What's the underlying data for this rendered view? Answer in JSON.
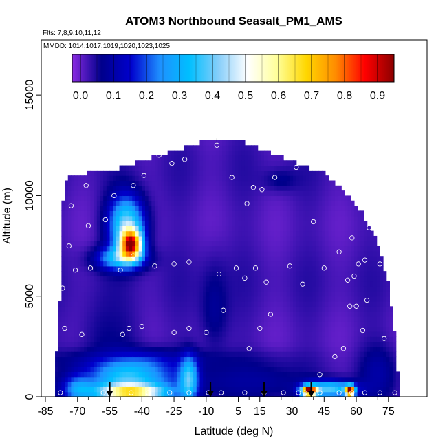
{
  "chart_data": {
    "type": "heatmap",
    "title": "ATOM3 Northbound Seasalt_PM1_AMS",
    "subtitle_flights": "Flts: 7,8,9,10,11,12",
    "subtitle_dates": "MMDD: 1014,1017,1019,1020,1023,1025",
    "xlabel": "Latitude (deg N)",
    "ylabel": "Altitude (m)",
    "xlim": [
      -85,
      85
    ],
    "ylim": [
      0,
      17500
    ],
    "x_ticks": [
      -85,
      -70,
      -55,
      -40,
      -25,
      -10,
      5,
      15,
      30,
      45,
      60,
      75
    ],
    "x_tick_labels": [
      "-85",
      "-70",
      "-55",
      "-40",
      "-25",
      "-10",
      "5",
      "15",
      "30",
      "45",
      "60",
      "75"
    ],
    "y_ticks": [
      0,
      5000,
      10000,
      15000
    ],
    "y_tick_labels": [
      "0",
      "5000",
      "10000",
      "15000"
    ],
    "colorbar": {
      "range": [
        -0.025,
        0.95
      ],
      "ticks": [
        0.0,
        0.1,
        0.2,
        0.3,
        0.4,
        0.5,
        0.6,
        0.7,
        0.8,
        0.9
      ],
      "tick_labels": [
        "0.0",
        "0.1",
        "0.2",
        "0.3",
        "0.4",
        "0.5",
        "0.6",
        "0.7",
        "0.8",
        "0.9"
      ],
      "colors": [
        "#8a2be2",
        "#00008b",
        "#0000cd",
        "#1e90ff",
        "#00bfff",
        "#87cefa",
        "#ffffff",
        "#ffff99",
        "#ffd700",
        "#ff8c00",
        "#ff0000",
        "#8b0000"
      ],
      "placement": "top inside plot"
    },
    "background_value": 0.02,
    "blobs": [
      {
        "lat": -45,
        "alt": 7600,
        "amp": 0.72,
        "sx": 3.5,
        "sy": 500
      },
      {
        "lat": -47,
        "alt": 8600,
        "amp": 0.38,
        "sx": 6,
        "sy": 1000
      },
      {
        "lat": -50,
        "alt": 6900,
        "amp": 0.28,
        "sx": 8,
        "sy": 400
      },
      {
        "lat": -45,
        "alt": 200,
        "amp": 0.5,
        "sx": 12,
        "sy": 300
      },
      {
        "lat": -45,
        "alt": 1000,
        "amp": 0.32,
        "sx": 14,
        "sy": 700
      },
      {
        "lat": -70,
        "alt": 400,
        "amp": 0.2,
        "sx": 5,
        "sy": 500
      },
      {
        "lat": -18,
        "alt": 900,
        "amp": 0.3,
        "sx": 3,
        "sy": 800
      },
      {
        "lat": 38,
        "alt": 300,
        "amp": 0.85,
        "sx": 2.5,
        "sy": 180
      },
      {
        "lat": 57,
        "alt": 300,
        "amp": 0.9,
        "sx": 1.5,
        "sy": 180
      },
      {
        "lat": 48,
        "alt": 400,
        "amp": 0.35,
        "sx": 8,
        "sy": 300
      }
    ],
    "dark_patches": [
      {
        "lat": -40,
        "alt": 1900,
        "sx": 40,
        "sy": 350,
        "v": 0.07
      },
      {
        "lat": 10,
        "alt": 800,
        "sx": 20,
        "sy": 700,
        "v": 0.09
      },
      {
        "lat": -6,
        "alt": 4500,
        "sx": 5,
        "sy": 1600,
        "v": 0.08
      },
      {
        "lat": 70,
        "alt": 1200,
        "sx": 6,
        "sy": 1000,
        "v": 0.1
      },
      {
        "lat": -55,
        "alt": 3000,
        "sx": 10,
        "sy": 1500,
        "v": 0.06
      },
      {
        "lat": 25,
        "alt": 10800,
        "sx": 6,
        "sy": 400,
        "v": 0.07
      }
    ],
    "profile_edge": [
      [
        -81,
        0
      ],
      [
        -78,
        5000
      ],
      [
        -77,
        9500
      ],
      [
        -75,
        10800
      ],
      [
        -65,
        11000
      ],
      [
        -52,
        11200
      ],
      [
        -40,
        11600
      ],
      [
        -25,
        12100
      ],
      [
        -10,
        12600
      ],
      [
        5,
        12600
      ],
      [
        15,
        12200
      ],
      [
        30,
        11600
      ],
      [
        45,
        11000
      ],
      [
        55,
        10000
      ],
      [
        63,
        9000
      ],
      [
        70,
        7600
      ],
      [
        75,
        5500
      ],
      [
        78,
        3000
      ],
      [
        80,
        0
      ]
    ],
    "observation_points": [
      [
        -78,
        200
      ],
      [
        -76,
        3400
      ],
      [
        -77,
        5400
      ],
      [
        -74,
        7500
      ],
      [
        -73,
        9500
      ],
      [
        -71,
        6300
      ],
      [
        -68,
        3100
      ],
      [
        -66,
        10500
      ],
      [
        -65,
        8500
      ],
      [
        -64,
        6400
      ],
      [
        -57,
        8800
      ],
      [
        -53,
        10000
      ],
      [
        -50,
        6300
      ],
      [
        -49,
        3100
      ],
      [
        -46,
        3400
      ],
      [
        -44,
        10500
      ],
      [
        -44,
        7000
      ],
      [
        -40,
        3500
      ],
      [
        -39,
        11000
      ],
      [
        -34,
        6500
      ],
      [
        -32,
        12000
      ],
      [
        -26,
        11600
      ],
      [
        -25,
        6600
      ],
      [
        -25,
        3200
      ],
      [
        -20,
        11800
      ],
      [
        -18,
        6700
      ],
      [
        -18,
        3400
      ],
      [
        -10,
        3200
      ],
      [
        -5,
        12500
      ],
      [
        -4,
        6100
      ],
      [
        -2,
        4300
      ],
      [
        2,
        10900
      ],
      [
        4,
        6400
      ],
      [
        8,
        5900
      ],
      [
        9,
        9600
      ],
      [
        10,
        2400
      ],
      [
        12,
        10400
      ],
      [
        13,
        6400
      ],
      [
        15,
        3400
      ],
      [
        16,
        10300
      ],
      [
        18,
        5700
      ],
      [
        20,
        4100
      ],
      [
        22,
        10900
      ],
      [
        29,
        6500
      ],
      [
        32,
        11400
      ],
      [
        35,
        5600
      ],
      [
        40,
        8700
      ],
      [
        43,
        1100
      ],
      [
        45,
        6400
      ],
      [
        50,
        2000
      ],
      [
        52,
        7200
      ],
      [
        54,
        2400
      ],
      [
        56,
        5800
      ],
      [
        57,
        4500
      ],
      [
        58,
        7900
      ],
      [
        59,
        6000
      ],
      [
        60,
        4500
      ],
      [
        61,
        6600
      ],
      [
        63,
        3300
      ],
      [
        64,
        6800
      ],
      [
        65,
        4800
      ],
      [
        66,
        8400
      ],
      [
        71,
        6600
      ],
      [
        73,
        2900
      ],
      [
        -58,
        200
      ],
      [
        -45,
        200
      ],
      [
        -37,
        200
      ],
      [
        -27,
        200
      ],
      [
        -18,
        200
      ],
      [
        -9,
        200
      ],
      [
        -3,
        200
      ],
      [
        8,
        200
      ],
      [
        17,
        200
      ],
      [
        26,
        200
      ],
      [
        33,
        200
      ],
      [
        36,
        200
      ],
      [
        43,
        200
      ],
      [
        52,
        200
      ],
      [
        58,
        200
      ],
      [
        64,
        200
      ],
      [
        71,
        200
      ],
      [
        78,
        200
      ]
    ],
    "arrows_at_latitude": [
      -55,
      -8,
      17,
      39
    ],
    "tick_mark_at_top": {
      "lat": -5,
      "alt": 12500
    }
  }
}
